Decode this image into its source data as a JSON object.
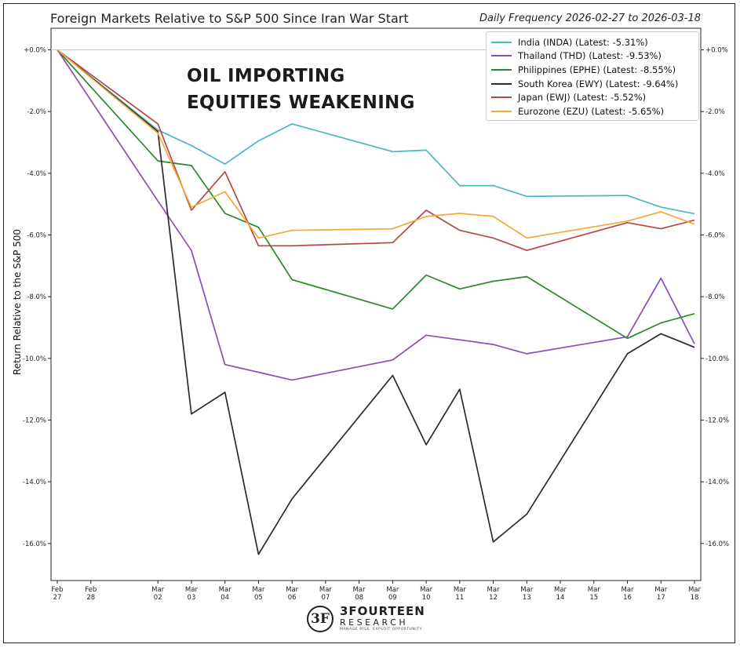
{
  "chart_data": {
    "type": "line",
    "title": "Foreign Markets Relative to S&P 500 Since Iran War Start",
    "subtitle": "Daily Frequency 2026-02-27 to 2026-03-18",
    "annotation": [
      "OIL IMPORTING",
      "EQUITIES WEAKENING"
    ],
    "ylabel": "Return Relative to the S&P 500",
    "xlabel": "",
    "ylim": [
      -17.2,
      0.7
    ],
    "yticks": [
      0,
      -2,
      -4,
      -6,
      -8,
      -10,
      -12,
      -14,
      -16
    ],
    "ytick_labels": [
      "+0.0%",
      "-2.0%",
      "-4.0%",
      "-6.0%",
      "-8.0%",
      "-10.0%",
      "-12.0%",
      "-14.0%",
      "-16.0%"
    ],
    "legend_position": "top-right",
    "x_ticks": [
      {
        "day": 0,
        "month": "Feb",
        "date": "27"
      },
      {
        "day": 1,
        "month": "Feb",
        "date": "28"
      },
      {
        "day": 3,
        "month": "Mar",
        "date": "02"
      },
      {
        "day": 4,
        "month": "Mar",
        "date": "03"
      },
      {
        "day": 5,
        "month": "Mar",
        "date": "04"
      },
      {
        "day": 6,
        "month": "Mar",
        "date": "05"
      },
      {
        "day": 7,
        "month": "Mar",
        "date": "06"
      },
      {
        "day": 8,
        "month": "Mar",
        "date": "07"
      },
      {
        "day": 9,
        "month": "Mar",
        "date": "08"
      },
      {
        "day": 10,
        "month": "Mar",
        "date": "09"
      },
      {
        "day": 11,
        "month": "Mar",
        "date": "10"
      },
      {
        "day": 12,
        "month": "Mar",
        "date": "11"
      },
      {
        "day": 13,
        "month": "Mar",
        "date": "12"
      },
      {
        "day": 14,
        "month": "Mar",
        "date": "13"
      },
      {
        "day": 15,
        "month": "Mar",
        "date": "14"
      },
      {
        "day": 16,
        "month": "Mar",
        "date": "15"
      },
      {
        "day": 17,
        "month": "Mar",
        "date": "16"
      },
      {
        "day": 18,
        "month": "Mar",
        "date": "17"
      },
      {
        "day": 19,
        "month": "Mar",
        "date": "18"
      }
    ],
    "x": [
      0,
      3,
      4,
      5,
      6,
      7,
      10,
      11,
      12,
      13,
      14,
      17,
      18,
      19
    ],
    "series": [
      {
        "name": "India (INDA) (Latest: -5.31%)",
        "color": "#4ab8be",
        "values": [
          0.0,
          -2.6,
          -3.1,
          -3.7,
          -2.95,
          -2.4,
          -3.3,
          -3.25,
          -4.4,
          -4.4,
          -4.75,
          -4.72,
          -5.1,
          -5.31
        ]
      },
      {
        "name": "Thailand (THD) (Latest: -9.53%)",
        "color": "#8b4db8",
        "values": [
          0.0,
          -4.9,
          -6.5,
          -10.2,
          -10.45,
          -10.7,
          -10.05,
          -9.25,
          -9.4,
          -9.55,
          -9.85,
          -9.3,
          -7.4,
          -9.53
        ]
      },
      {
        "name": "Philippines (EPHE) (Latest: -8.55%)",
        "color": "#2a8a2a",
        "values": [
          0.0,
          -3.6,
          -3.75,
          -5.3,
          -5.75,
          -7.45,
          -8.4,
          -7.3,
          -7.75,
          -7.5,
          -7.35,
          -9.35,
          -8.85,
          -8.55
        ]
      },
      {
        "name": "South Korea (EWY) (Latest: -9.64%)",
        "color": "#2b2b2b",
        "values": [
          0.0,
          -2.65,
          -11.8,
          -11.1,
          -16.35,
          -14.55,
          -10.55,
          -12.8,
          -11.0,
          -15.95,
          -15.05,
          -9.85,
          -9.2,
          -9.64
        ]
      },
      {
        "name": "Japan (EWJ) (Latest: -5.52%)",
        "color": "#b04a44",
        "values": [
          0.0,
          -2.4,
          -5.2,
          -3.95,
          -6.35,
          -6.35,
          -6.25,
          -5.2,
          -5.85,
          -6.1,
          -6.5,
          -5.6,
          -5.8,
          -5.52
        ]
      },
      {
        "name": "Eurozone (EZU) (Latest: -5.65%)",
        "color": "#f2a93b",
        "values": [
          0.0,
          -2.7,
          -5.1,
          -4.6,
          -6.1,
          -5.85,
          -5.8,
          -5.4,
          -5.3,
          -5.4,
          -6.1,
          -5.55,
          -5.25,
          -5.65
        ]
      }
    ]
  },
  "branding": {
    "mark": "3F",
    "name": "3FOURTEEN",
    "sub": "RESEARCH",
    "tagline": "MANAGE RISK. EXPLOIT OPPORTUNITY"
  }
}
